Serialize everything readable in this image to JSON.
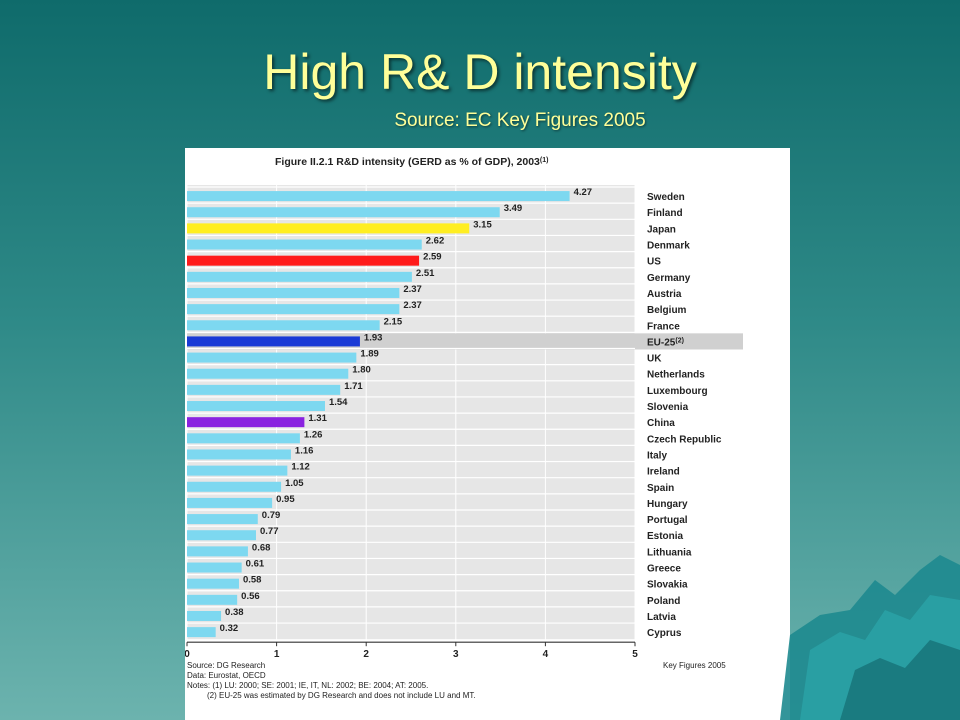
{
  "slide": {
    "title": "High R& D intensity",
    "subtitle": "Source: EC Key Figures 2005"
  },
  "figure": {
    "source": "Source: DG Research",
    "data": "Data: Eurostat, OECD",
    "notes1": "Notes: (1) LU: 2000; SE: 2001; IE, IT, NL: 2002; BE: 2004; AT: 2005.",
    "notes2": "(2) EU-25 was estimated by DG Research and does not include LU and MT.",
    "key_figures": "Key Figures 2005"
  },
  "colors": {
    "default_bar": "#7dd8f0",
    "Japan": "#ffee22",
    "US": "#ff1a1a",
    "EU-25": "#1a3ad6",
    "China": "#8a22e0",
    "band": "#e6e6e6"
  },
  "chart_data": {
    "type": "bar",
    "orientation": "horizontal",
    "title": "Figure II.2.1 R&D intensity (GERD as % of GDP), 2003",
    "title_sup": "(1)",
    "xlim": [
      0,
      5
    ],
    "xticks": [
      "0",
      "1",
      "2",
      "3",
      "4",
      "5"
    ],
    "categories": [
      "Sweden",
      "Finland",
      "Japan",
      "Denmark",
      "US",
      "Germany",
      "Austria",
      "Belgium",
      "France",
      "EU-25",
      "UK",
      "Netherlands",
      "Luxembourg",
      "Slovenia",
      "China",
      "Czech Republic",
      "Italy",
      "Ireland",
      "Spain",
      "Hungary",
      "Portugal",
      "Estonia",
      "Lithuania",
      "Greece",
      "Slovakia",
      "Poland",
      "Latvia",
      "Cyprus"
    ],
    "category_sup": {
      "EU-25": "(2)"
    },
    "values": [
      4.27,
      3.49,
      3.15,
      2.62,
      2.59,
      2.51,
      2.37,
      2.37,
      2.15,
      1.93,
      1.89,
      1.8,
      1.71,
      1.54,
      1.31,
      1.26,
      1.16,
      1.12,
      1.05,
      0.95,
      0.79,
      0.77,
      0.68,
      0.61,
      0.58,
      0.56,
      0.38,
      0.32
    ],
    "labels": [
      "4.27",
      "3.49",
      "3.15",
      "2.62",
      "2.59",
      "2.51",
      "2.37",
      "2.37",
      "2.15",
      "1.93",
      "1.89",
      "1.80",
      "1.71",
      "1.54",
      "1.31",
      "1.26",
      "1.16",
      "1.12",
      "1.05",
      "0.95",
      "0.79",
      "0.77",
      "0.68",
      "0.61",
      "0.58",
      "0.56",
      "0.38",
      "0.32"
    ],
    "highlight": [
      "Japan",
      "US",
      "EU-25",
      "China"
    ]
  }
}
